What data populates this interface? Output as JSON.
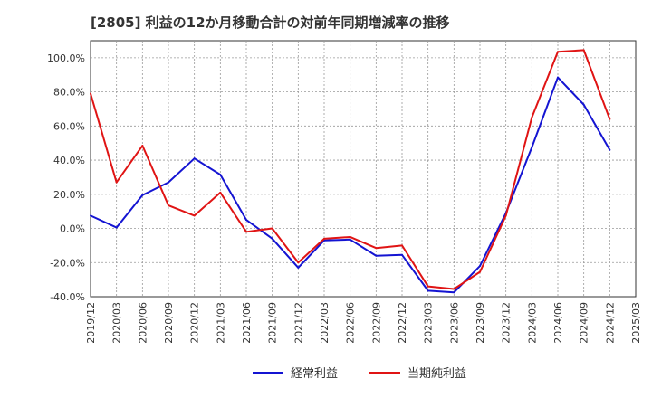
{
  "chart_data": {
    "type": "line",
    "title": "[2805]  利益の12か月移動合計の対前年同期増減率の推移",
    "xlabel": "",
    "ylabel": "",
    "categories": [
      "2019/12",
      "2020/03",
      "2020/06",
      "2020/09",
      "2020/12",
      "2021/03",
      "2021/06",
      "2021/09",
      "2021/12",
      "2022/03",
      "2022/06",
      "2022/09",
      "2022/12",
      "2023/03",
      "2023/06",
      "2023/09",
      "2023/12",
      "2024/03",
      "2024/06",
      "2024/09",
      "2024/12",
      "2025/03"
    ],
    "ylim": [
      -40,
      110
    ],
    "yticks": [
      -40,
      -20,
      0,
      20,
      40,
      60,
      80,
      100
    ],
    "ytick_labels": [
      "-40.0%",
      "-20.0%",
      "0.0%",
      "20.0%",
      "40.0%",
      "60.0%",
      "80.0%",
      "100.0%"
    ],
    "grid": true,
    "legend_position": "bottom",
    "series": [
      {
        "name": "経常利益",
        "color": "#1414d2",
        "values": [
          7.5,
          0.5,
          19.5,
          27,
          41,
          31.5,
          5,
          -6,
          -23,
          -7,
          -6.5,
          -16,
          -15.5,
          -36.5,
          -37.5,
          -22,
          9,
          47.5,
          88.5,
          72.5,
          46,
          null
        ]
      },
      {
        "name": "当期純利益",
        "color": "#e01414",
        "values": [
          79,
          27,
          48.5,
          13.5,
          7.5,
          21,
          -2,
          0,
          -20,
          -6,
          -5,
          -11.5,
          -10,
          -34,
          -35.5,
          -25.5,
          7.5,
          65,
          103.5,
          104.5,
          64,
          null
        ]
      }
    ]
  }
}
